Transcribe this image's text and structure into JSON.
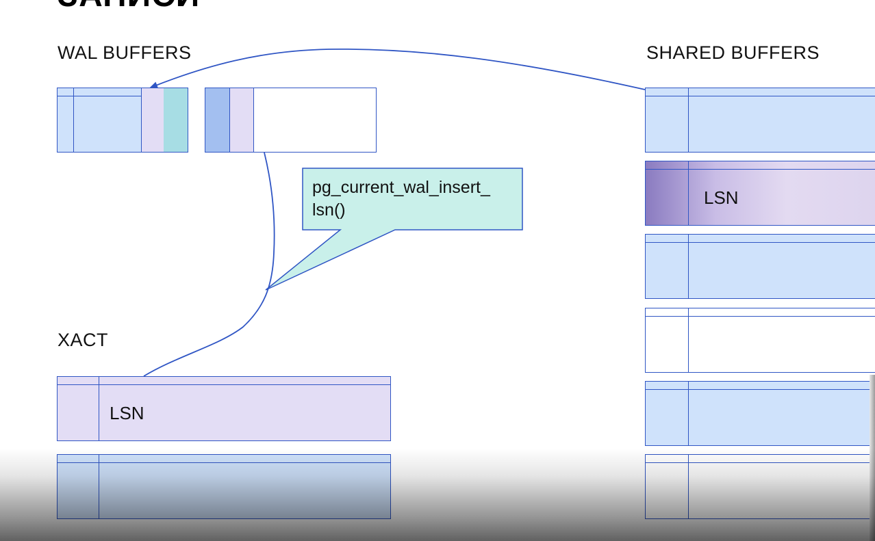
{
  "slide": {
    "title": "ЗАПИСИ"
  },
  "labels": {
    "wal_buffers": "WAL BUFFERS",
    "shared_buffers": "SHARED BUFFERS",
    "xact": "XACT"
  },
  "callout": {
    "text": "pg_current_wal_insert_\nlsn()"
  },
  "xact_block": {
    "lsn_label": "LSN"
  },
  "shared_block": {
    "lsn_label": "LSN"
  },
  "colors": {
    "line": "#2f55c4",
    "buffer_blue": "#cfe2fb",
    "buffer_violet": "#e3ddf5",
    "callout_fill": "#c9f0ea",
    "wal_cyan": "#a7dde4"
  }
}
